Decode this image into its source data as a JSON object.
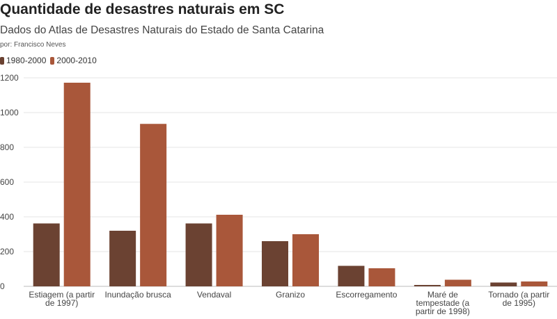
{
  "chart_data": {
    "type": "bar",
    "title": "Quantidade de desastres naturais em SC",
    "subtitle": "Dados do Atlas de Desastres Naturais do Estado de Santa Catarina",
    "byline": "por: Francisco Neves",
    "categories": [
      [
        "Estiagem (a partir",
        "de 1997)"
      ],
      [
        "Inundação brusca"
      ],
      [
        "Vendaval"
      ],
      [
        "Granizo"
      ],
      [
        "Escorregamento"
      ],
      [
        "Maré de",
        "tempestade (a",
        "partir de 1998)"
      ],
      [
        "Tornado (a partir",
        "de 1995)"
      ]
    ],
    "series": [
      {
        "name": "1980-2000",
        "color": "#6b4232",
        "values": [
          362,
          320,
          362,
          260,
          118,
          8,
          22
        ]
      },
      {
        "name": "2000-2010",
        "color": "#a9573a",
        "values": [
          1172,
          935,
          412,
          300,
          104,
          38,
          28
        ]
      }
    ],
    "ylim": [
      0,
      1200
    ],
    "yticks": [
      0,
      200,
      400,
      600,
      800,
      1000,
      1200
    ],
    "xlabel": "",
    "ylabel": "",
    "grid": true,
    "legend_position": "top-left"
  }
}
